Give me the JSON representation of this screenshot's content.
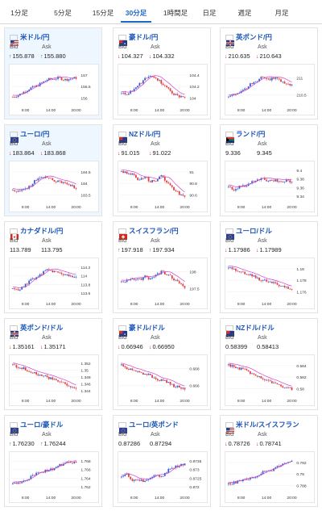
{
  "tabs": [
    "1分足",
    "5分足",
    "15分足",
    "30分足",
    "1時間足",
    "日足",
    "週足",
    "月足"
  ],
  "active_tab": "30分足",
  "labels": {
    "bid": "Bid",
    "ask": "Ask"
  },
  "colors": {
    "up_candle": "#e23b3b",
    "down_candle": "#2f5fd6",
    "ma": "#d23ad2",
    "title": "#1a55b8"
  },
  "cards": [
    {
      "title": "米ドル/円",
      "flag": "us",
      "bid": "155.878",
      "ask": "155.880",
      "dir": "up",
      "y_ticks": [
        "157",
        "156.5",
        "156"
      ],
      "x_ticks": [
        "8:00",
        "14:00",
        "20:00"
      ]
    },
    {
      "title": "豪ドル/円",
      "flag": "au",
      "bid": "104.327",
      "ask": "104.332",
      "dir": "down",
      "y_ticks": [
        "104.4",
        "104.2",
        "104"
      ],
      "x_ticks": [
        "8:00",
        "14:00",
        "20:00"
      ]
    },
    {
      "title": "英ポンド/円",
      "flag": "gb",
      "bid": "210.635",
      "ask": "210.643",
      "dir": "down",
      "y_ticks": [
        "211",
        "210.5"
      ],
      "x_ticks": [
        "8:00",
        "14:00",
        "20:00"
      ]
    },
    {
      "title": "ユーロ/円",
      "flag": "eu",
      "bid": "183.864",
      "ask": "183.868",
      "dir": "down",
      "y_ticks": [
        "184.5",
        "184",
        "183.5"
      ],
      "x_ticks": [
        "8:00",
        "14:00",
        "20:00"
      ]
    },
    {
      "title": "NZドル/円",
      "flag": "nz",
      "bid": "91.015",
      "ask": "91.022",
      "dir": "down",
      "y_ticks": [
        "91",
        "90.8",
        "90.6"
      ],
      "x_ticks": [
        "8:00",
        "14:00",
        "20:00"
      ]
    },
    {
      "title": "ランド/円",
      "flag": "za",
      "bid": "9.336",
      "ask": "9.345",
      "dir": "",
      "y_ticks": [
        "9.4",
        "9.38",
        "9.36",
        "9.34"
      ],
      "x_ticks": [
        "8:00",
        "14:00",
        "20:00"
      ]
    },
    {
      "title": "カナダドル/円",
      "flag": "ca",
      "bid": "113.789",
      "ask": "113.795",
      "dir": "",
      "y_ticks": [
        "114.2",
        "114",
        "113.8",
        "113.6"
      ],
      "x_ticks": [
        "8:00",
        "14:00",
        "20:00"
      ]
    },
    {
      "title": "スイスフラン/円",
      "flag": "ch",
      "bid": "197.918",
      "ask": "197.934",
      "dir": "up",
      "y_ticks": [
        "198",
        "197.5"
      ],
      "x_ticks": [
        "8:00",
        "14:00",
        "20:00"
      ]
    },
    {
      "title": "ユーロ/ドル",
      "flag": "eu",
      "bid": "1.17986",
      "ask": "1.17989",
      "dir": "down",
      "y_ticks": [
        "1.18",
        "1.178",
        "1.176"
      ],
      "x_ticks": [
        "8:00",
        "14:00",
        "20:00"
      ]
    },
    {
      "title": "英ポンド/ドル",
      "flag": "gb",
      "bid": "1.35161",
      "ask": "1.35171",
      "dir": "down",
      "y_ticks": [
        "1.352",
        "1.35",
        "1.348",
        "1.346",
        "1.344"
      ],
      "x_ticks": [
        "8:00",
        "14:00",
        "20:00"
      ]
    },
    {
      "title": "豪ドル/ドル",
      "flag": "au",
      "bid": "0.66946",
      "ask": "0.66950",
      "dir": "down",
      "y_ticks": [
        "0.668",
        "0.666"
      ],
      "x_ticks": [
        "8:00",
        "14:00",
        "20:00"
      ]
    },
    {
      "title": "NZドル/ドル",
      "flag": "nz",
      "bid": "0.58399",
      "ask": "0.58413",
      "dir": "",
      "y_ticks": [
        "0.584",
        "0.582",
        "0.58"
      ],
      "x_ticks": [
        "8:00",
        "14:00",
        "20:00"
      ]
    },
    {
      "title": "ユーロ/豪ドル",
      "flag": "eu",
      "bid": "1.76230",
      "ask": "1.76244",
      "dir": "up",
      "y_ticks": [
        "1.768",
        "1.766",
        "1.764",
        "1.762"
      ],
      "x_ticks": [
        "8:00",
        "14:00",
        "20:00"
      ]
    },
    {
      "title": "ユーロ/英ポンド",
      "flag": "eu",
      "bid": "0.87286",
      "ask": "0.87294",
      "dir": "",
      "y_ticks": [
        "0.8735",
        "0.873",
        "0.8725",
        "0.872"
      ],
      "x_ticks": [
        "8:00",
        "14:00",
        "20:00"
      ]
    },
    {
      "title": "米ドル/スイスフラン",
      "flag": "us",
      "bid": "0.78726",
      "ask": "0.78741",
      "dir": "down",
      "y_ticks": [
        "0.792",
        "0.79",
        "0.788"
      ],
      "x_ticks": [
        "8:00",
        "14:00",
        "20:00"
      ]
    }
  ]
}
